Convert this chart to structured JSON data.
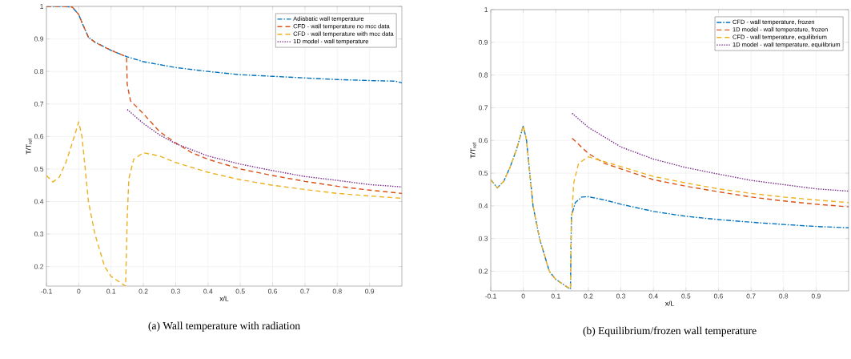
{
  "chart_data": [
    {
      "type": "line",
      "title": "(a) Wall temperature with radiation",
      "xlabel": "x/L",
      "ylabel": "T/T$_{ref}$",
      "xlim": [
        -0.1,
        1.0
      ],
      "ylim": [
        0.14,
        1
      ],
      "xticks": [
        -0.1,
        0,
        0.1,
        0.2,
        0.3,
        0.4,
        0.5,
        0.6,
        0.7,
        0.8,
        0.9
      ],
      "yticks": [
        0.2,
        0.3,
        0.4,
        0.5,
        0.6,
        0.7,
        0.8,
        0.9,
        1
      ],
      "grid": true,
      "legend": "top right",
      "series": [
        {
          "name": "Adiabatic wall temperature",
          "color": "#0072bd",
          "line_style": "dashdot",
          "x": [
            -0.1,
            -0.05,
            -0.02,
            0,
            0.01,
            0.03,
            0.05,
            0.1,
            0.15,
            0.2,
            0.3,
            0.4,
            0.5,
            0.6,
            0.7,
            0.8,
            0.9,
            0.98,
            1.0
          ],
          "values": [
            1.0,
            1.0,
            0.998,
            0.975,
            0.95,
            0.905,
            0.89,
            0.865,
            0.845,
            0.83,
            0.812,
            0.8,
            0.79,
            0.785,
            0.78,
            0.775,
            0.772,
            0.77,
            0.765
          ]
        },
        {
          "name": "CFD - wall temperature no mcc data",
          "color": "#d95319",
          "line_style": "dashed",
          "x": [
            -0.1,
            -0.05,
            -0.02,
            0,
            0.01,
            0.03,
            0.05,
            0.1,
            0.148,
            0.15,
            0.16,
            0.18,
            0.2,
            0.25,
            0.3,
            0.35,
            0.4,
            0.5,
            0.6,
            0.7,
            0.8,
            0.9,
            1.0
          ],
          "values": [
            1.0,
            1.0,
            0.998,
            0.975,
            0.95,
            0.905,
            0.89,
            0.865,
            0.845,
            0.76,
            0.71,
            0.69,
            0.67,
            0.615,
            0.58,
            0.55,
            0.53,
            0.5,
            0.48,
            0.462,
            0.447,
            0.435,
            0.425
          ]
        },
        {
          "name": "CFD - wall temperature with mcc data",
          "color": "#edb120",
          "line_style": "dashed",
          "x": [
            -0.1,
            -0.08,
            -0.06,
            -0.04,
            -0.02,
            0,
            0.01,
            0.03,
            0.05,
            0.08,
            0.1,
            0.13,
            0.145,
            0.15,
            0.155,
            0.17,
            0.2,
            0.25,
            0.3,
            0.4,
            0.5,
            0.6,
            0.7,
            0.8,
            0.9,
            1.0
          ],
          "values": [
            0.48,
            0.46,
            0.475,
            0.52,
            0.58,
            0.645,
            0.6,
            0.4,
            0.3,
            0.2,
            0.17,
            0.15,
            0.14,
            0.35,
            0.47,
            0.53,
            0.55,
            0.54,
            0.52,
            0.49,
            0.467,
            0.45,
            0.437,
            0.425,
            0.417,
            0.41
          ]
        },
        {
          "name": "1D model - wall temperature",
          "color": "#7e2f8e",
          "line_style": "dotted",
          "x": [
            0.15,
            0.2,
            0.25,
            0.3,
            0.4,
            0.5,
            0.6,
            0.7,
            0.8,
            0.9,
            1.0
          ],
          "values": [
            0.683,
            0.64,
            0.605,
            0.578,
            0.54,
            0.515,
            0.495,
            0.477,
            0.465,
            0.452,
            0.445
          ]
        }
      ]
    },
    {
      "type": "line",
      "title": "(b) Equilibrium/frozen wall temperature",
      "xlabel": "x/L",
      "ylabel": "T/T$_{ref}$",
      "xlim": [
        -0.1,
        1.0
      ],
      "ylim": [
        0.14,
        1
      ],
      "xticks": [
        -0.1,
        0,
        0.1,
        0.2,
        0.3,
        0.4,
        0.5,
        0.6,
        0.7,
        0.8,
        0.9
      ],
      "yticks": [
        0.2,
        0.3,
        0.4,
        0.5,
        0.6,
        0.7,
        0.8,
        0.9,
        1
      ],
      "grid": true,
      "legend": "top right",
      "series": [
        {
          "name": "CFD - wall temperature, frozen",
          "color": "#0072bd",
          "line_style": "dashdot",
          "x": [
            -0.1,
            -0.08,
            -0.06,
            -0.04,
            -0.02,
            0,
            0.01,
            0.03,
            0.05,
            0.08,
            0.1,
            0.13,
            0.145,
            0.148,
            0.16,
            0.18,
            0.2,
            0.25,
            0.3,
            0.4,
            0.5,
            0.6,
            0.7,
            0.8,
            0.9,
            1.0
          ],
          "values": [
            0.48,
            0.455,
            0.475,
            0.52,
            0.575,
            0.645,
            0.6,
            0.4,
            0.3,
            0.2,
            0.175,
            0.155,
            0.145,
            0.37,
            0.41,
            0.427,
            0.428,
            0.418,
            0.405,
            0.383,
            0.368,
            0.358,
            0.35,
            0.343,
            0.337,
            0.333
          ]
        },
        {
          "name": "1D model - wall temperature, frozen",
          "color": "#d95319",
          "line_style": "dashed",
          "x": [
            0.15,
            0.2,
            0.25,
            0.3,
            0.4,
            0.5,
            0.6,
            0.7,
            0.8,
            0.9,
            1.0
          ],
          "values": [
            0.607,
            0.56,
            0.53,
            0.513,
            0.48,
            0.46,
            0.443,
            0.427,
            0.415,
            0.405,
            0.397
          ]
        },
        {
          "name": "CFD - wall temperature, equilibrium",
          "color": "#edb120",
          "line_style": "dashed",
          "x": [
            -0.1,
            -0.08,
            -0.06,
            -0.04,
            -0.02,
            0,
            0.01,
            0.03,
            0.05,
            0.08,
            0.1,
            0.13,
            0.145,
            0.148,
            0.155,
            0.17,
            0.2,
            0.25,
            0.3,
            0.4,
            0.5,
            0.6,
            0.7,
            0.8,
            0.9,
            1.0
          ],
          "values": [
            0.48,
            0.455,
            0.475,
            0.52,
            0.575,
            0.645,
            0.6,
            0.4,
            0.3,
            0.2,
            0.175,
            0.155,
            0.145,
            0.35,
            0.47,
            0.53,
            0.55,
            0.535,
            0.52,
            0.49,
            0.47,
            0.452,
            0.438,
            0.427,
            0.418,
            0.41
          ]
        },
        {
          "name": "1D model - wall temperature, equilibrium",
          "color": "#7e2f8e",
          "line_style": "dotted",
          "x": [
            0.15,
            0.2,
            0.3,
            0.4,
            0.5,
            0.6,
            0.7,
            0.8,
            0.9,
            1.0
          ],
          "values": [
            0.683,
            0.64,
            0.58,
            0.543,
            0.517,
            0.497,
            0.478,
            0.465,
            0.452,
            0.445
          ]
        }
      ]
    }
  ]
}
